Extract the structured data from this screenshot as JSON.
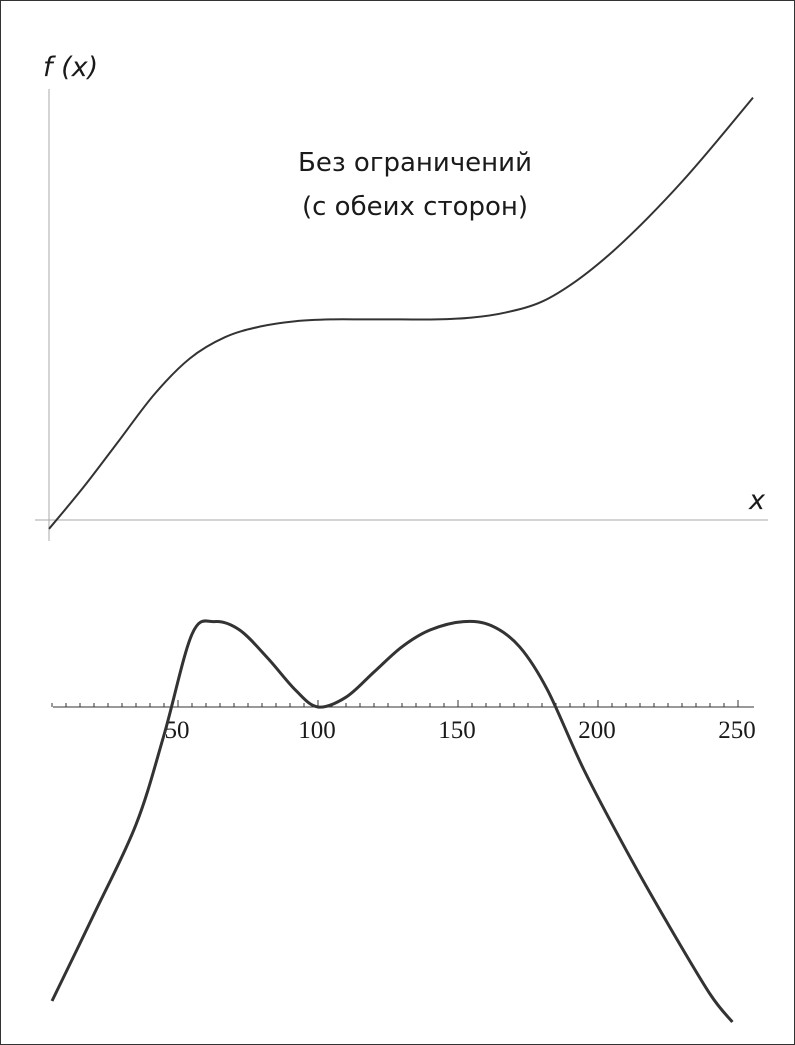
{
  "chart_data": [
    {
      "type": "line",
      "ylabel": "f (x)",
      "xlabel": "x",
      "annotation": [
        "Без ограничений",
        "(с обеих сторон)"
      ],
      "grid": false,
      "x": [
        0,
        0.05,
        0.1,
        0.15,
        0.2,
        0.25,
        0.3,
        0.35,
        0.4,
        0.45,
        0.5,
        0.55,
        0.6,
        0.65,
        0.7,
        0.75,
        0.8,
        0.85,
        0.9,
        0.95,
        1.0
      ],
      "y": [
        -0.025,
        0.095,
        0.225,
        0.355,
        0.455,
        0.515,
        0.545,
        0.56,
        0.565,
        0.565,
        0.565,
        0.565,
        0.57,
        0.585,
        0.615,
        0.675,
        0.755,
        0.85,
        0.955,
        1.07,
        1.19
      ],
      "color": "#333333"
    },
    {
      "type": "line",
      "x_ticks": [
        "50",
        "100",
        "150",
        "200",
        "250"
      ],
      "xlim": [
        0,
        256
      ],
      "ylim": [
        -2.2,
        0.7
      ],
      "grid": false,
      "x": [
        5,
        20,
        35,
        45,
        55,
        63,
        72,
        82,
        92,
        100,
        110,
        120,
        130,
        140,
        152,
        162,
        172,
        182,
        195,
        210,
        225,
        240,
        248
      ],
      "y": [
        -2.1,
        -1.48,
        -0.84,
        -0.2,
        0.52,
        0.61,
        0.55,
        0.35,
        0.12,
        0.0,
        0.07,
        0.25,
        0.43,
        0.55,
        0.61,
        0.58,
        0.43,
        0.12,
        -0.45,
        -1.02,
        -1.55,
        -2.05,
        -2.25
      ],
      "color": "#333333"
    }
  ]
}
